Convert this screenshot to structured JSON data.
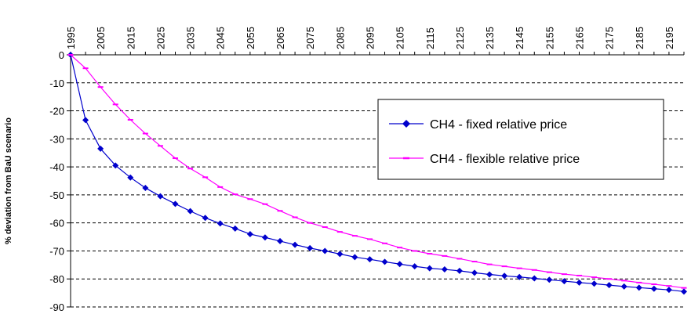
{
  "chart_data": {
    "type": "line",
    "title": "",
    "xlabel": "",
    "ylabel": "% deviation from BaU scenario",
    "x_axis_position": "top",
    "x_tick_labels": [
      "1995",
      "2005",
      "2015",
      "2025",
      "2035",
      "2045",
      "2055",
      "2065",
      "2075",
      "2085",
      "2095",
      "2105",
      "2115",
      "2125",
      "2135",
      "2145",
      "2155",
      "2165",
      "2175",
      "2185",
      "2195"
    ],
    "xlim": [
      1995,
      2200
    ],
    "ylim": [
      -90,
      0
    ],
    "y_ticks": [
      0,
      -10,
      -20,
      -30,
      -40,
      -50,
      -60,
      -70,
      -80,
      -90
    ],
    "grid": "horizontal dashed",
    "legend_position": "right, boxed",
    "x": [
      1995,
      2000,
      2005,
      2010,
      2015,
      2020,
      2025,
      2030,
      2035,
      2040,
      2045,
      2050,
      2055,
      2060,
      2065,
      2070,
      2075,
      2080,
      2085,
      2090,
      2095,
      2100,
      2105,
      2110,
      2115,
      2120,
      2125,
      2130,
      2135,
      2140,
      2145,
      2150,
      2155,
      2160,
      2165,
      2170,
      2175,
      2180,
      2185,
      2190,
      2195,
      2200
    ],
    "series": [
      {
        "name": "CH4 - fixed relative price",
        "color": "#0000cc",
        "marker": "diamond",
        "values": [
          0,
          -23.3,
          -33.5,
          -39.5,
          -43.8,
          -47.5,
          -50.5,
          -53.2,
          -55.8,
          -58.2,
          -60.2,
          -62.0,
          -64.0,
          -65.2,
          -66.5,
          -67.8,
          -69.0,
          -70.0,
          -71.1,
          -72.2,
          -73.0,
          -73.9,
          -74.7,
          -75.5,
          -76.2,
          -76.6,
          -77.1,
          -77.8,
          -78.4,
          -78.9,
          -79.3,
          -79.8,
          -80.3,
          -80.8,
          -81.3,
          -81.7,
          -82.2,
          -82.7,
          -83.1,
          -83.5,
          -83.9,
          -84.5
        ]
      },
      {
        "name": "CH4 - flexible relative price",
        "color": "#ff00ff",
        "marker": "dash",
        "values": [
          0,
          -4.8,
          -11.5,
          -17.7,
          -23.2,
          -28.1,
          -32.5,
          -36.9,
          -40.6,
          -43.7,
          -47.2,
          -49.8,
          -51.5,
          -53.3,
          -55.7,
          -58.0,
          -60.0,
          -61.5,
          -63.2,
          -64.6,
          -65.8,
          -67.3,
          -68.8,
          -70.0,
          -71.0,
          -71.8,
          -72.8,
          -73.8,
          -74.8,
          -75.5,
          -76.2,
          -76.8,
          -77.6,
          -78.3,
          -78.8,
          -79.4,
          -80.0,
          -80.6,
          -81.3,
          -81.9,
          -82.5,
          -83.2
        ]
      }
    ]
  }
}
